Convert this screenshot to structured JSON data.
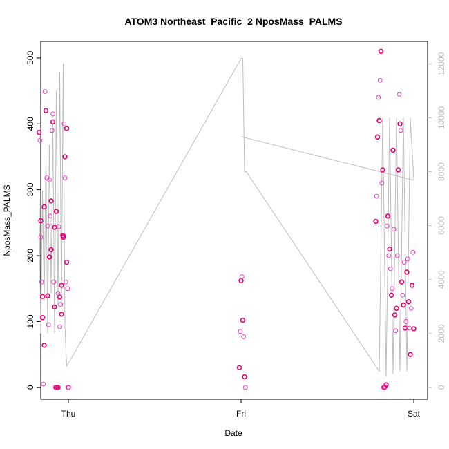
{
  "chart_data": {
    "type": "scatter",
    "title": "ATOM3 Northeast_Pacific_2 NposMass_PALMS",
    "xlabel": "Date",
    "ylabel": "NposMass_PALMS",
    "x_ticks": [
      "Thu",
      "Fri",
      "Sat"
    ],
    "xlim": [
      -0.16,
      2.08
    ],
    "ylim": [
      -18,
      525
    ],
    "y_ticks": [
      0,
      100,
      200,
      300,
      400,
      500
    ],
    "y2lim": [
      -440,
      12830
    ],
    "y2_ticks": [
      0,
      2000,
      4000,
      6000,
      8000,
      10000,
      12000
    ],
    "grid": false,
    "colors": {
      "points_dark": "#e8006e",
      "points_light": "#ea3fc2",
      "secondary_line": "#bdbdbd",
      "right_axis": "#bdbdbd"
    },
    "series": [
      {
        "axis": "left",
        "values_x": [
          -0.17,
          -0.165,
          -0.16,
          -0.155,
          -0.15,
          -0.145,
          -0.14,
          -0.135,
          -0.13,
          -0.125,
          -0.12,
          -0.115,
          -0.11,
          -0.105,
          -0.1,
          -0.095,
          -0.09,
          -0.085,
          -0.08,
          -0.075,
          -0.07,
          -0.065,
          -0.06,
          -0.055,
          -0.05,
          -0.045,
          -0.04,
          -0.035,
          -0.03,
          -0.025,
          -0.02,
          -0.015,
          -0.01,
          -0.005,
          0.0,
          -0.16,
          -0.15,
          -0.12,
          -0.1,
          -0.09,
          -0.07,
          -0.05,
          -0.03,
          -0.02,
          -0.01,
          0.0,
          -0.14,
          -0.11,
          -0.08,
          -0.06,
          -0.04
        ],
        "values_y": [
          387,
          375,
          253,
          160,
          138,
          5,
          64,
          449,
          420,
          318,
          139,
          95,
          198,
          260,
          209,
          390,
          403,
          160,
          122,
          0,
          0,
          0,
          0,
          244,
          137,
          126,
          155,
          231,
          228,
          400,
          350,
          160,
          190,
          150,
          0,
          228,
          106,
          245,
          283,
          415,
          267,
          92,
          230,
          318,
          393,
          0,
          274,
          315,
          243,
          143,
          111
        ]
      },
      {
        "axis": "left",
        "values_x": [
          0.99,
          0.995,
          1.0,
          1.005,
          1.01,
          1.015,
          1.02,
          1.025
        ],
        "values_y": [
          30,
          85,
          162,
          168,
          102,
          77,
          16,
          0
        ]
      },
      {
        "axis": "left",
        "values_x": [
          1.78,
          1.785,
          1.79,
          1.795,
          1.8,
          1.805,
          1.81,
          1.815,
          1.82,
          1.825,
          1.83,
          1.835,
          1.84,
          1.845,
          1.85,
          1.855,
          1.86,
          1.865,
          1.87,
          1.875,
          1.88,
          1.885,
          1.89,
          1.895,
          1.9,
          1.905,
          1.91,
          1.915,
          1.92,
          1.925,
          1.93,
          1.935,
          1.94,
          1.945,
          1.95,
          1.955,
          1.96,
          1.965,
          1.97,
          1.975,
          1.98,
          1.985,
          1.99,
          1.995,
          2.0
        ],
        "values_y": [
          252,
          290,
          380,
          440,
          405,
          466,
          510,
          310,
          330,
          0,
          0,
          1,
          4,
          245,
          260,
          200,
          210,
          180,
          140,
          150,
          360,
          240,
          110,
          86,
          120,
          200,
          330,
          445,
          400,
          390,
          160,
          140,
          125,
          190,
          90,
          100,
          175,
          195,
          130,
          90,
          50,
          120,
          155,
          205,
          89
        ]
      }
    ],
    "secondary_series": {
      "axis": "right",
      "values_x": [
        -0.17,
        -0.16,
        -0.15,
        -0.14,
        -0.13,
        -0.12,
        -0.11,
        -0.1,
        -0.09,
        -0.08,
        -0.07,
        -0.06,
        -0.05,
        -0.04,
        -0.03,
        -0.02,
        -0.01,
        0.0,
        0.01,
        1.0,
        1.01,
        1.02,
        1.03,
        1.8,
        1.82,
        1.84,
        1.86,
        1.88,
        1.9,
        1.92,
        1.94,
        1.96,
        1.98,
        2.0,
        1.99,
        1.0
      ],
      "values_y": [
        7200,
        2000,
        7300,
        3200,
        8600,
        2000,
        9000,
        3500,
        9800,
        2000,
        11000,
        3000,
        11700,
        3000,
        12000,
        2200,
        800,
        900,
        1000,
        12200,
        12200,
        8000,
        8000,
        600,
        10000,
        400,
        10000,
        500,
        10000,
        600,
        10000,
        600,
        10000,
        7700,
        7700,
        9300
      ]
    }
  }
}
